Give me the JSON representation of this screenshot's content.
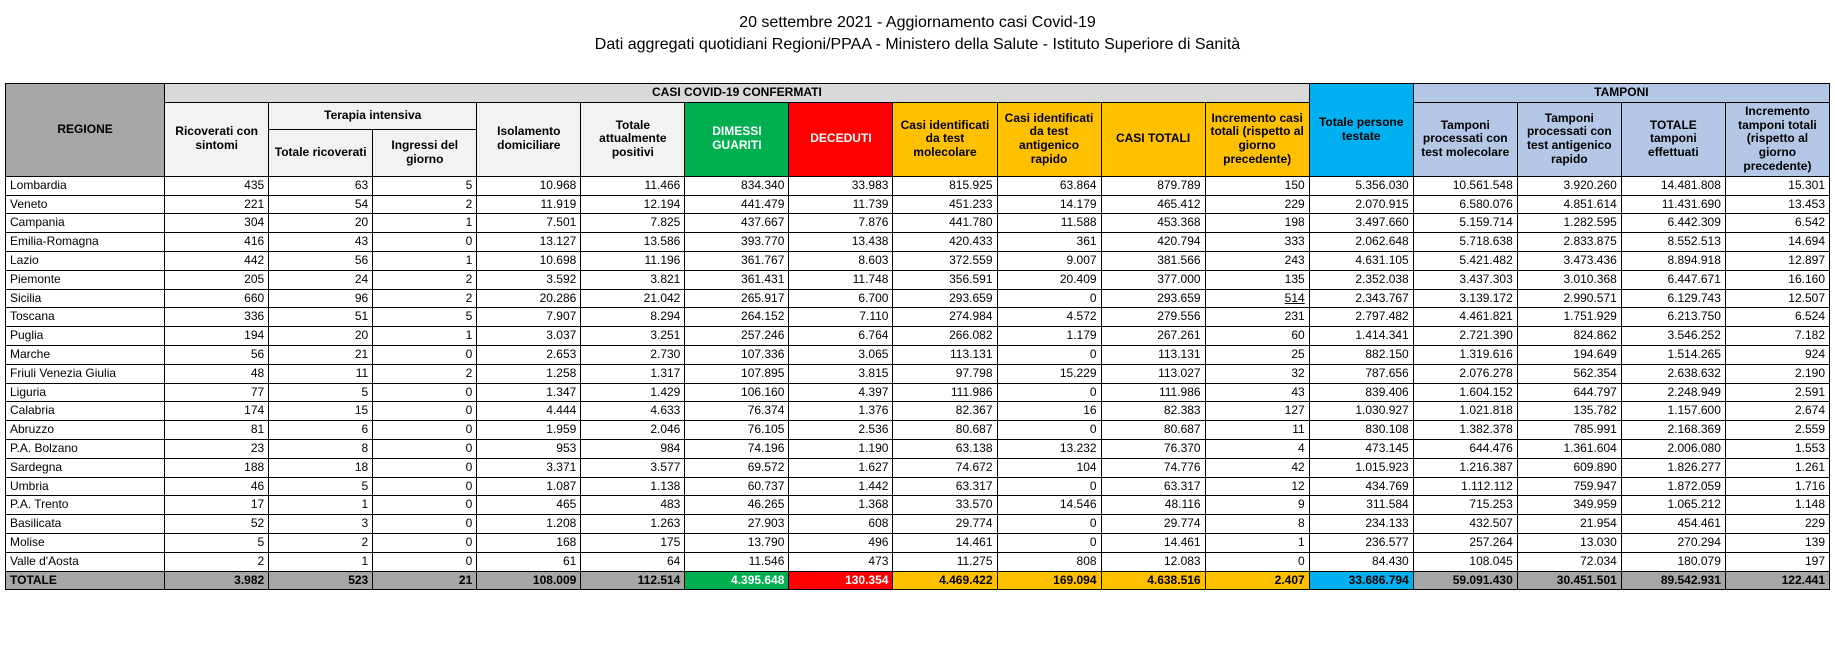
{
  "title1": "20 settembre 2021 - Aggiornamento casi Covid-19",
  "title2": "Dati aggregati quotidiani Regioni/PPAA - Ministero della Salute - Istituto Superiore di Sanità",
  "headers": {
    "h_region": "REGIONE",
    "h_casi_group": "CASI COVID-19 CONFERMATI",
    "h_tamponi_group": "TAMPONI",
    "h_ricoverati": "Ricoverati con sintomi",
    "h_terapia_group": "Terapia intensiva",
    "h_terapia_tot": "Totale ricoverati",
    "h_terapia_ing": "Ingressi del giorno",
    "h_isolamento": "Isolamento domiciliare",
    "h_tot_positivi": "Totale attualmente positivi",
    "h_dimessi": "DIMESSI GUARITI",
    "h_deceduti": "DECEDUTI",
    "h_casi_mol": "Casi identificati da test molecolare",
    "h_casi_ant": "Casi identificati da test antigenico rapido",
    "h_casi_tot": "CASI TOTALI",
    "h_incr_casi": "Incremento casi totali (rispetto al giorno precedente)",
    "h_persone": "Totale persone testate",
    "h_tamp_mol": "Tamponi processati con test molecolare",
    "h_tamp_ant": "Tamponi processati con test antigenico rapido",
    "h_tamp_tot": "TOTALE tamponi effettuati",
    "h_incr_tamp": "Incremento tamponi totali (rispetto al giorno precedente)"
  },
  "colors": {
    "grey_dark": "#a6a6a6",
    "grey_mid": "#d9d9d9",
    "grey_light": "#f2f2f2",
    "green": "#00b050",
    "red": "#ff0000",
    "yellow": "#ffc000",
    "blue": "#00b0f0",
    "blue_light": "#b4c7e7",
    "border": "#000000",
    "bg": "#ffffff"
  },
  "typography": {
    "title_fontsize": 16,
    "body_fontsize": 12,
    "font_family": "Arial"
  },
  "columns": [
    "region",
    "ricoverati",
    "terapia_tot",
    "terapia_ing",
    "isolamento",
    "tot_positivi",
    "dimessi",
    "deceduti",
    "casi_mol",
    "casi_ant",
    "casi_tot",
    "incr_casi",
    "persone",
    "tamp_mol",
    "tamp_ant",
    "tamp_tot",
    "incr_tamp"
  ],
  "rows": [
    [
      "Lombardia",
      "435",
      "63",
      "5",
      "10.968",
      "11.466",
      "834.340",
      "33.983",
      "815.925",
      "63.864",
      "879.789",
      "150",
      "5.356.030",
      "10.561.548",
      "3.920.260",
      "14.481.808",
      "15.301"
    ],
    [
      "Veneto",
      "221",
      "54",
      "2",
      "11.919",
      "12.194",
      "441.479",
      "11.739",
      "451.233",
      "14.179",
      "465.412",
      "229",
      "2.070.915",
      "6.580.076",
      "4.851.614",
      "11.431.690",
      "13.453"
    ],
    [
      "Campania",
      "304",
      "20",
      "1",
      "7.501",
      "7.825",
      "437.667",
      "7.876",
      "441.780",
      "11.588",
      "453.368",
      "198",
      "3.497.660",
      "5.159.714",
      "1.282.595",
      "6.442.309",
      "6.542"
    ],
    [
      "Emilia-Romagna",
      "416",
      "43",
      "0",
      "13.127",
      "13.586",
      "393.770",
      "13.438",
      "420.433",
      "361",
      "420.794",
      "333",
      "2.062.648",
      "5.718.638",
      "2.833.875",
      "8.552.513",
      "14.694"
    ],
    [
      "Lazio",
      "442",
      "56",
      "1",
      "10.698",
      "11.196",
      "361.767",
      "8.603",
      "372.559",
      "9.007",
      "381.566",
      "243",
      "4.631.105",
      "5.421.482",
      "3.473.436",
      "8.894.918",
      "12.897"
    ],
    [
      "Piemonte",
      "205",
      "24",
      "2",
      "3.592",
      "3.821",
      "361.431",
      "11.748",
      "356.591",
      "20.409",
      "377.000",
      "135",
      "2.352.038",
      "3.437.303",
      "3.010.368",
      "6.447.671",
      "16.160"
    ],
    [
      "Sicilia",
      "660",
      "96",
      "2",
      "20.286",
      "21.042",
      "265.917",
      "6.700",
      "293.659",
      "0",
      "293.659",
      "514",
      "2.343.767",
      "3.139.172",
      "2.990.571",
      "6.129.743",
      "12.507"
    ],
    [
      "Toscana",
      "336",
      "51",
      "5",
      "7.907",
      "8.294",
      "264.152",
      "7.110",
      "274.984",
      "4.572",
      "279.556",
      "231",
      "2.797.482",
      "4.461.821",
      "1.751.929",
      "6.213.750",
      "6.524"
    ],
    [
      "Puglia",
      "194",
      "20",
      "1",
      "3.037",
      "3.251",
      "257.246",
      "6.764",
      "266.082",
      "1.179",
      "267.261",
      "60",
      "1.414.341",
      "2.721.390",
      "824.862",
      "3.546.252",
      "7.182"
    ],
    [
      "Marche",
      "56",
      "21",
      "0",
      "2.653",
      "2.730",
      "107.336",
      "3.065",
      "113.131",
      "0",
      "113.131",
      "25",
      "882.150",
      "1.319.616",
      "194.649",
      "1.514.265",
      "924"
    ],
    [
      "Friuli Venezia Giulia",
      "48",
      "11",
      "2",
      "1.258",
      "1.317",
      "107.895",
      "3.815",
      "97.798",
      "15.229",
      "113.027",
      "32",
      "787.656",
      "2.076.278",
      "562.354",
      "2.638.632",
      "2.190"
    ],
    [
      "Liguria",
      "77",
      "5",
      "0",
      "1.347",
      "1.429",
      "106.160",
      "4.397",
      "111.986",
      "0",
      "111.986",
      "43",
      "839.406",
      "1.604.152",
      "644.797",
      "2.248.949",
      "2.591"
    ],
    [
      "Calabria",
      "174",
      "15",
      "0",
      "4.444",
      "4.633",
      "76.374",
      "1.376",
      "82.367",
      "16",
      "82.383",
      "127",
      "1.030.927",
      "1.021.818",
      "135.782",
      "1.157.600",
      "2.674"
    ],
    [
      "Abruzzo",
      "81",
      "6",
      "0",
      "1.959",
      "2.046",
      "76.105",
      "2.536",
      "80.687",
      "0",
      "80.687",
      "11",
      "830.108",
      "1.382.378",
      "785.991",
      "2.168.369",
      "2.559"
    ],
    [
      "P.A. Bolzano",
      "23",
      "8",
      "0",
      "953",
      "984",
      "74.196",
      "1.190",
      "63.138",
      "13.232",
      "76.370",
      "4",
      "473.145",
      "644.476",
      "1.361.604",
      "2.006.080",
      "1.553"
    ],
    [
      "Sardegna",
      "188",
      "18",
      "0",
      "3.371",
      "3.577",
      "69.572",
      "1.627",
      "74.672",
      "104",
      "74.776",
      "42",
      "1.015.923",
      "1.216.387",
      "609.890",
      "1.826.277",
      "1.261"
    ],
    [
      "Umbria",
      "46",
      "5",
      "0",
      "1.087",
      "1.138",
      "60.737",
      "1.442",
      "63.317",
      "0",
      "63.317",
      "12",
      "434.769",
      "1.112.112",
      "759.947",
      "1.872.059",
      "1.716"
    ],
    [
      "P.A. Trento",
      "17",
      "1",
      "0",
      "465",
      "483",
      "46.265",
      "1.368",
      "33.570",
      "14.546",
      "48.116",
      "9",
      "311.584",
      "715.253",
      "349.959",
      "1.065.212",
      "1.148"
    ],
    [
      "Basilicata",
      "52",
      "3",
      "0",
      "1.208",
      "1.263",
      "27.903",
      "608",
      "29.774",
      "0",
      "29.774",
      "8",
      "234.133",
      "432.507",
      "21.954",
      "454.461",
      "229"
    ],
    [
      "Molise",
      "5",
      "2",
      "0",
      "168",
      "175",
      "13.790",
      "496",
      "14.461",
      "0",
      "14.461",
      "1",
      "236.577",
      "257.264",
      "13.030",
      "270.294",
      "139"
    ],
    [
      "Valle d'Aosta",
      "2",
      "1",
      "0",
      "61",
      "64",
      "11.546",
      "473",
      "11.275",
      "808",
      "12.083",
      "0",
      "84.430",
      "108.045",
      "72.034",
      "180.079",
      "197"
    ]
  ],
  "total_row": [
    "TOTALE",
    "3.982",
    "523",
    "21",
    "108.009",
    "112.514",
    "4.395.648",
    "130.354",
    "4.469.422",
    "169.094",
    "4.638.516",
    "2.407",
    "33.686.794",
    "59.091.430",
    "30.451.501",
    "89.542.931",
    "122.441"
  ],
  "underline_cell": {
    "row": 6,
    "col": 11
  }
}
